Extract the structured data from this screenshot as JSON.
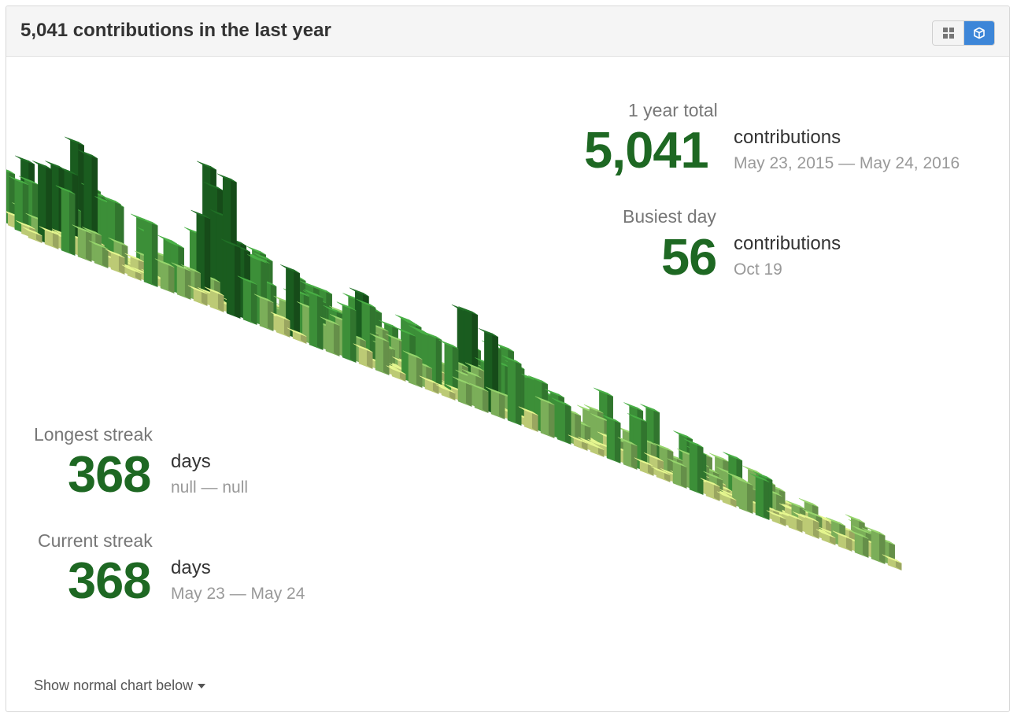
{
  "header": {
    "title": "5,041 contributions in the last year",
    "toggle": [
      {
        "icon": "grid-icon",
        "active": false
      },
      {
        "icon": "cube-icon",
        "active": true
      }
    ]
  },
  "stats": {
    "year_total": {
      "label": "1 year total",
      "value": "5,041",
      "unit": "contributions",
      "range": "May 23, 2015 — May 24, 2016"
    },
    "busiest_day": {
      "label": "Busiest day",
      "value": "56",
      "unit": "contributions",
      "range": "Oct 19"
    },
    "longest_streak": {
      "label": "Longest streak",
      "value": "368",
      "unit": "days",
      "range": "null — null"
    },
    "current_streak": {
      "label": "Current streak",
      "value": "368",
      "unit": "days",
      "range": "May 23 — May 24"
    }
  },
  "footer": {
    "show_normal_label": "Show normal chart below"
  },
  "colors": {
    "accent": "#1e6823",
    "level_1": "#d6e685",
    "level_2": "#8cc665",
    "level_3": "#44a340",
    "level_4": "#1e6823",
    "toggle_active": "#3d86d8"
  },
  "chart_data": {
    "type": "heatmap",
    "title": "",
    "weeks": 53,
    "days_per_week": 7,
    "max_per_day": 56,
    "weekly_max": [
      38,
      32,
      30,
      36,
      40,
      42,
      30,
      26,
      24,
      22,
      20,
      34,
      32,
      56,
      30,
      28,
      30,
      24,
      22,
      26,
      30,
      28,
      24,
      20,
      18,
      22,
      24,
      20,
      36,
      30,
      28,
      26,
      22,
      20,
      18,
      16,
      14,
      24,
      22,
      26,
      20,
      18,
      14,
      12,
      16,
      14,
      12,
      10,
      12,
      10,
      8,
      10,
      8
    ],
    "levels": [
      "#d6e685",
      "#8cc665",
      "#44a340",
      "#1e6823"
    ]
  }
}
